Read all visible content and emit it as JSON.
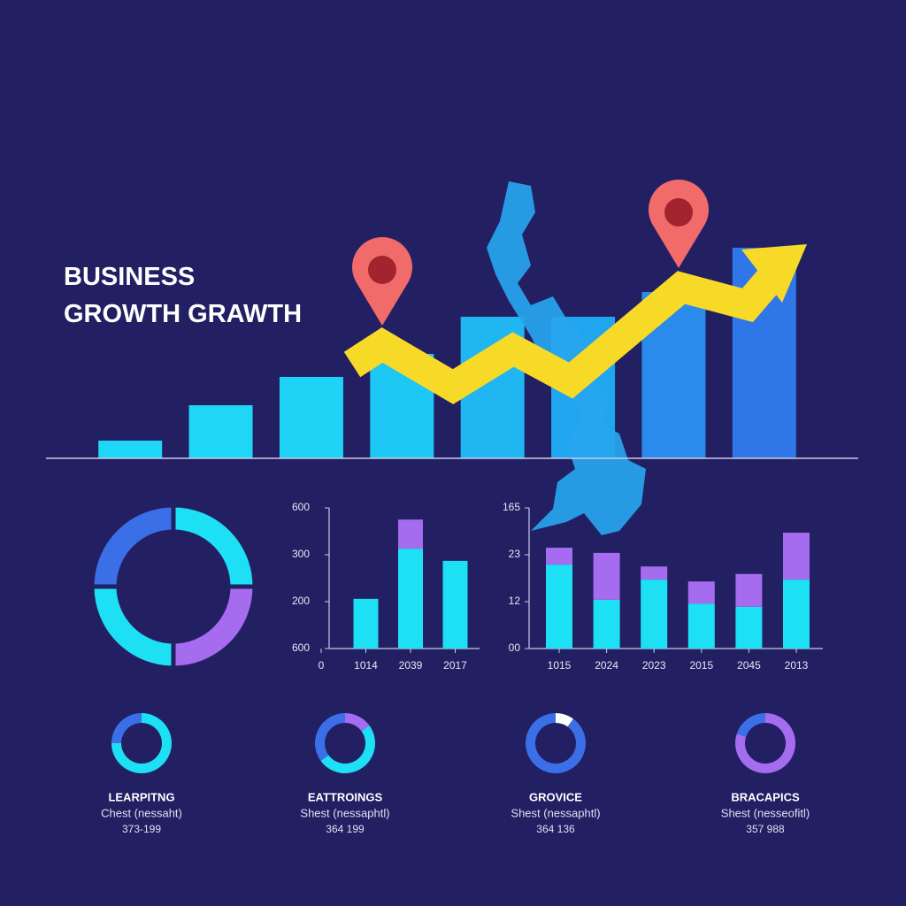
{
  "chart_data": [
    {
      "type": "bar",
      "title": [
        "BUSINESS",
        "GROWTH GRAWTH"
      ],
      "values": [
        20,
        60,
        92,
        118,
        160,
        160,
        188,
        238
      ],
      "colors": [
        "#1ed6f6",
        "#1ed6f6",
        "#1ed3f6",
        "#1ec8f5",
        "#1fb6f2",
        "#1fa6ef",
        "#2a8bec",
        "#2f77e8"
      ],
      "ylim": [
        0,
        260
      ]
    },
    {
      "type": "pie",
      "values": [
        25,
        25,
        25,
        25
      ],
      "colors": [
        "#1ee0f5",
        "#a56cf0",
        "#1ee0f5",
        "#3b6fe8"
      ]
    },
    {
      "type": "bar",
      "categories": [
        "0",
        "1014",
        "2039",
        "2017"
      ],
      "series": [
        {
          "color": "#1ee0f5",
          "values": [
            null,
            1.06,
            2.13,
            1.87
          ]
        },
        {
          "color": "#a56cf0",
          "values": [
            null,
            null,
            0.62,
            null
          ]
        }
      ],
      "ylim": [
        0,
        3
      ],
      "yticks": [
        {
          "value": 0,
          "label": "600"
        },
        {
          "value": 1,
          "label": "200"
        },
        {
          "value": 2,
          "label": "300"
        },
        {
          "value": 3,
          "label": "600"
        }
      ]
    },
    {
      "type": "bar",
      "categories": [
        "1015",
        "2024",
        "2023",
        "2015",
        "2045",
        "2013"
      ],
      "series": [
        {
          "color": "#1ee0f5",
          "values": [
            1.79,
            1.04,
            1.47,
            0.96,
            0.89,
            1.47
          ]
        },
        {
          "color": "#a56cf0",
          "values": [
            0.36,
            1.0,
            0.28,
            0.47,
            0.7,
            1.0
          ]
        }
      ],
      "ylim": [
        0,
        3
      ],
      "yticks": [
        {
          "value": 0,
          "label": "00"
        },
        {
          "value": 1,
          "label": "12"
        },
        {
          "value": 2,
          "label": "23"
        },
        {
          "value": 3,
          "label": "165"
        }
      ]
    },
    {
      "type": "pie",
      "title": "LEARPITNG",
      "subtitle": "Chest (nessaht)",
      "caption": "373-199",
      "values": [
        75,
        25
      ],
      "colors": [
        "#1ee0f5",
        "#3b6fe8"
      ]
    },
    {
      "type": "pie",
      "title": "EATTROINGS",
      "subtitle": "Shest (nessaphtl)",
      "caption": "364 199",
      "values": [
        15,
        50,
        35
      ],
      "colors": [
        "#a56cf0",
        "#1ee0f5",
        "#3b6fe8"
      ]
    },
    {
      "type": "pie",
      "title": "GROVICE",
      "subtitle": "Shest (nessaphtl)",
      "caption": "364 136",
      "values": [
        10,
        90
      ],
      "colors": [
        "#ffffff",
        "#3b6fe8"
      ]
    },
    {
      "type": "pie",
      "title": "BRACAPICS",
      "subtitle": "Shest (nesseofitl)",
      "caption": "357 988",
      "values": [
        80,
        20
      ],
      "colors": [
        "#a56cf0",
        "#3b6fe8"
      ]
    }
  ]
}
